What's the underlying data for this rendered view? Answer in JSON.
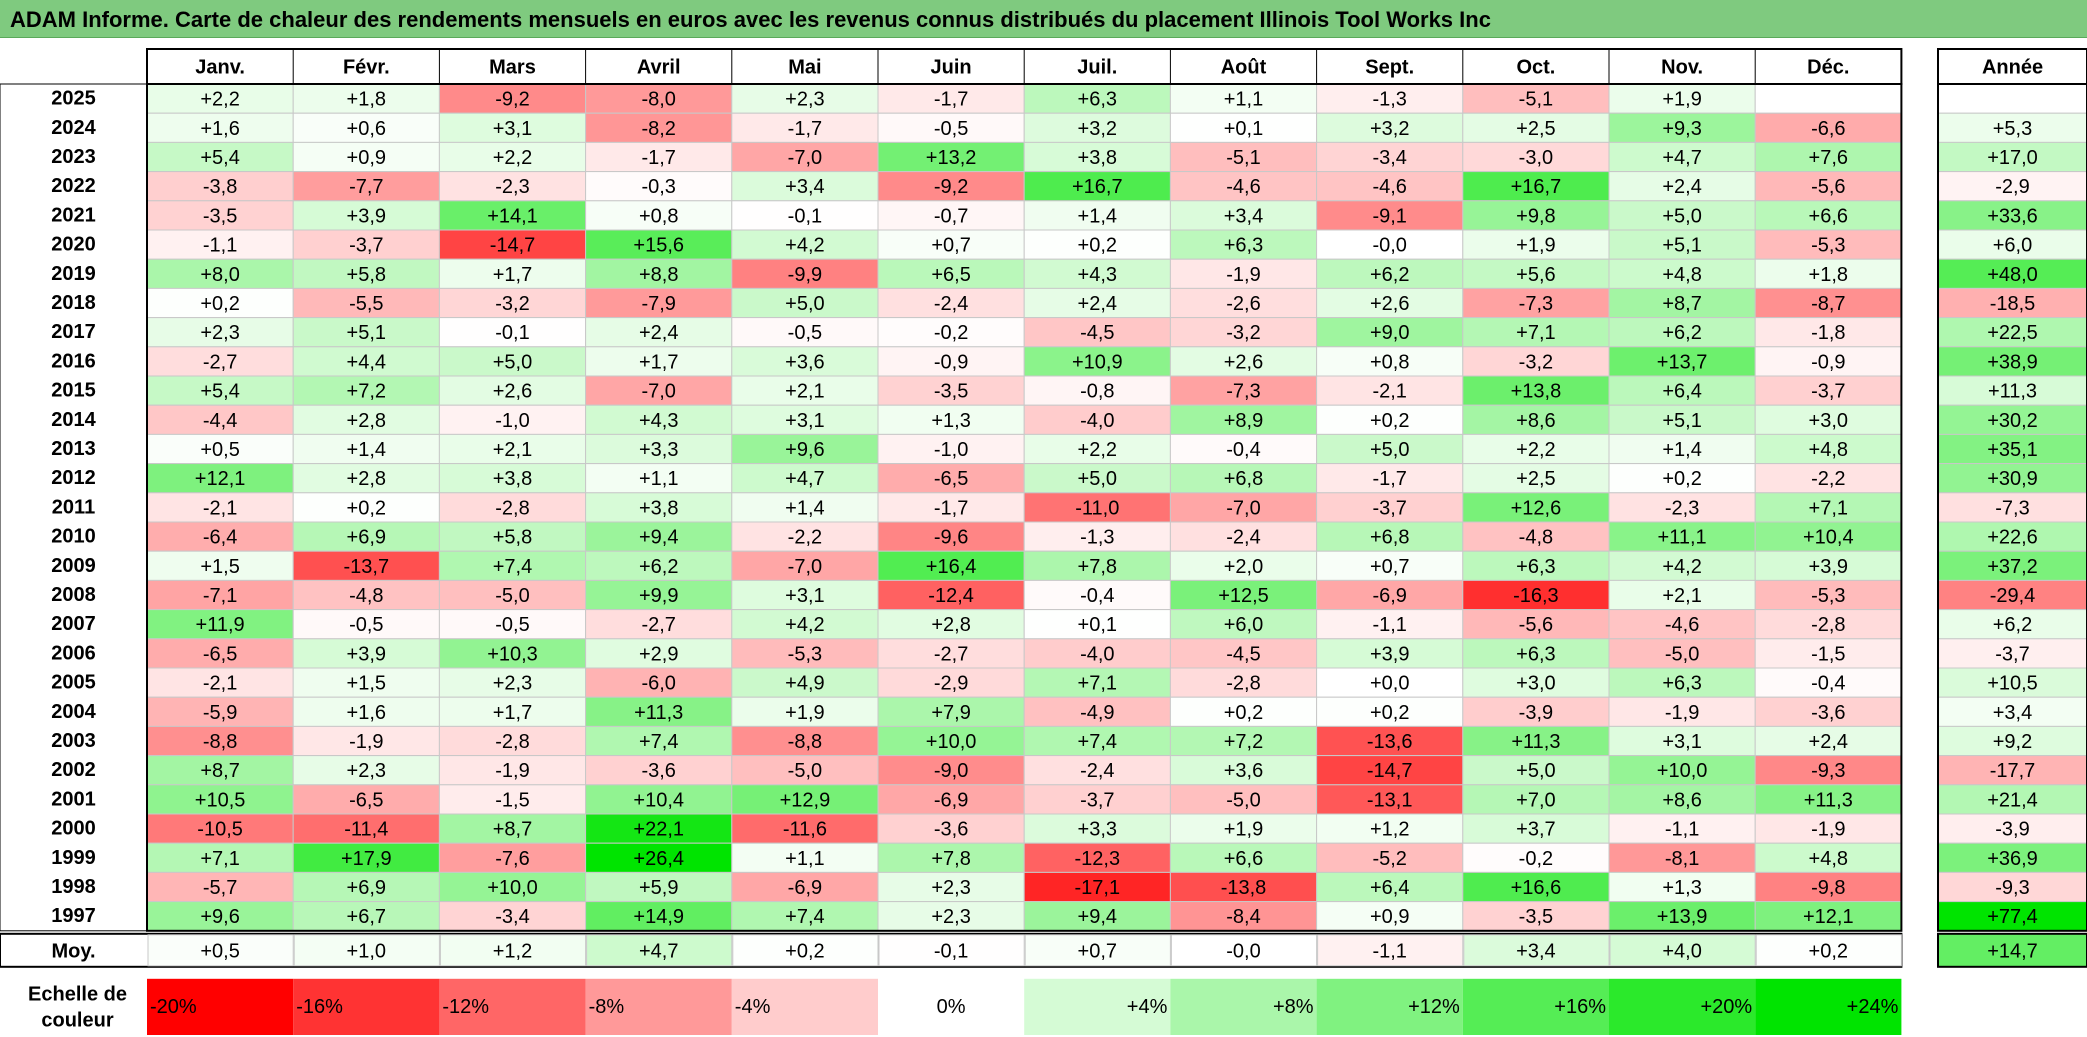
{
  "title": "ADAM Informe. Carte de chaleur des rendements mensuels en euros avec les revenus connus distribués du placement Illinois Tool Works Inc",
  "chart_data": {
    "type": "heatmap",
    "months": [
      "Janv.",
      "Févr.",
      "Mars",
      "Avril",
      "Mai",
      "Juin",
      "Juil.",
      "Août",
      "Sept.",
      "Oct.",
      "Nov.",
      "Déc."
    ],
    "year_header": "Année",
    "rows": [
      {
        "year": "2025",
        "values": [
          "+2,2",
          "+1,8",
          "-9,2",
          "-8,0",
          "+2,3",
          "-1,7",
          "+6,3",
          "+1,1",
          "-1,3",
          "-5,1",
          "+1,9",
          ""
        ],
        "annual": ""
      },
      {
        "year": "2024",
        "values": [
          "+1,6",
          "+0,6",
          "+3,1",
          "-8,2",
          "-1,7",
          "-0,5",
          "+3,2",
          "+0,1",
          "+3,2",
          "+2,5",
          "+9,3",
          "-6,6"
        ],
        "annual": "+5,3"
      },
      {
        "year": "2023",
        "values": [
          "+5,4",
          "+0,9",
          "+2,2",
          "-1,7",
          "-7,0",
          "+13,2",
          "+3,8",
          "-5,1",
          "-3,4",
          "-3,0",
          "+4,7",
          "+7,6"
        ],
        "annual": "+17,0"
      },
      {
        "year": "2022",
        "values": [
          "-3,8",
          "-7,7",
          "-2,3",
          "-0,3",
          "+3,4",
          "-9,2",
          "+16,7",
          "-4,6",
          "-4,6",
          "+16,7",
          "+2,4",
          "-5,6"
        ],
        "annual": "-2,9"
      },
      {
        "year": "2021",
        "values": [
          "-3,5",
          "+3,9",
          "+14,1",
          "+0,8",
          "-0,1",
          "-0,7",
          "+1,4",
          "+3,4",
          "-9,1",
          "+9,8",
          "+5,0",
          "+6,6"
        ],
        "annual": "+33,6"
      },
      {
        "year": "2020",
        "values": [
          "-1,1",
          "-3,7",
          "-14,7",
          "+15,6",
          "+4,2",
          "+0,7",
          "+0,2",
          "+6,3",
          "-0,0",
          "+1,9",
          "+5,1",
          "-5,3"
        ],
        "annual": "+6,0"
      },
      {
        "year": "2019",
        "values": [
          "+8,0",
          "+5,8",
          "+1,7",
          "+8,8",
          "-9,9",
          "+6,5",
          "+4,3",
          "-1,9",
          "+6,2",
          "+5,6",
          "+4,8",
          "+1,8"
        ],
        "annual": "+48,0"
      },
      {
        "year": "2018",
        "values": [
          "+0,2",
          "-5,5",
          "-3,2",
          "-7,9",
          "+5,0",
          "-2,4",
          "+2,4",
          "-2,6",
          "+2,6",
          "-7,3",
          "+8,7",
          "-8,7"
        ],
        "annual": "-18,5"
      },
      {
        "year": "2017",
        "values": [
          "+2,3",
          "+5,1",
          "-0,1",
          "+2,4",
          "-0,5",
          "-0,2",
          "-4,5",
          "-3,2",
          "+9,0",
          "+7,1",
          "+6,2",
          "-1,8"
        ],
        "annual": "+22,5"
      },
      {
        "year": "2016",
        "values": [
          "-2,7",
          "+4,4",
          "+5,0",
          "+1,7",
          "+3,6",
          "-0,9",
          "+10,9",
          "+2,6",
          "+0,8",
          "-3,2",
          "+13,7",
          "-0,9"
        ],
        "annual": "+38,9"
      },
      {
        "year": "2015",
        "values": [
          "+5,4",
          "+7,2",
          "+2,6",
          "-7,0",
          "+2,1",
          "-3,5",
          "-0,8",
          "-7,3",
          "-2,1",
          "+13,8",
          "+6,4",
          "-3,7"
        ],
        "annual": "+11,3"
      },
      {
        "year": "2014",
        "values": [
          "-4,4",
          "+2,8",
          "-1,0",
          "+4,3",
          "+3,1",
          "+1,3",
          "-4,0",
          "+8,9",
          "+0,2",
          "+8,6",
          "+5,1",
          "+3,0"
        ],
        "annual": "+30,2"
      },
      {
        "year": "2013",
        "values": [
          "+0,5",
          "+1,4",
          "+2,1",
          "+3,3",
          "+9,6",
          "-1,0",
          "+2,2",
          "-0,4",
          "+5,0",
          "+2,2",
          "+1,4",
          "+4,8"
        ],
        "annual": "+35,1"
      },
      {
        "year": "2012",
        "values": [
          "+12,1",
          "+2,8",
          "+3,8",
          "+1,1",
          "+4,7",
          "-6,5",
          "+5,0",
          "+6,8",
          "-1,7",
          "+2,5",
          "+0,2",
          "-2,2"
        ],
        "annual": "+30,9"
      },
      {
        "year": "2011",
        "values": [
          "-2,1",
          "+0,2",
          "-2,8",
          "+3,8",
          "+1,4",
          "-1,7",
          "-11,0",
          "-7,0",
          "-3,7",
          "+12,6",
          "-2,3",
          "+7,1"
        ],
        "annual": "-7,3"
      },
      {
        "year": "2010",
        "values": [
          "-6,4",
          "+6,9",
          "+5,8",
          "+9,4",
          "-2,2",
          "-9,6",
          "-1,3",
          "-2,4",
          "+6,8",
          "-4,8",
          "+11,1",
          "+10,4"
        ],
        "annual": "+22,6"
      },
      {
        "year": "2009",
        "values": [
          "+1,5",
          "-13,7",
          "+7,4",
          "+6,2",
          "-7,0",
          "+16,4",
          "+7,8",
          "+2,0",
          "+0,7",
          "+6,3",
          "+4,2",
          "+3,9"
        ],
        "annual": "+37,2"
      },
      {
        "year": "2008",
        "values": [
          "-7,1",
          "-4,8",
          "-5,0",
          "+9,9",
          "+3,1",
          "-12,4",
          "-0,4",
          "+12,5",
          "-6,9",
          "-16,3",
          "+2,1",
          "-5,3"
        ],
        "annual": "-29,4"
      },
      {
        "year": "2007",
        "values": [
          "+11,9",
          "-0,5",
          "-0,5",
          "-2,7",
          "+4,2",
          "+2,8",
          "+0,1",
          "+6,0",
          "-1,1",
          "-5,6",
          "-4,6",
          "-2,8"
        ],
        "annual": "+6,2"
      },
      {
        "year": "2006",
        "values": [
          "-6,5",
          "+3,9",
          "+10,3",
          "+2,9",
          "-5,3",
          "-2,7",
          "-4,0",
          "-4,5",
          "+3,9",
          "+6,3",
          "-5,0",
          "-1,5"
        ],
        "annual": "-3,7"
      },
      {
        "year": "2005",
        "values": [
          "-2,1",
          "+1,5",
          "+2,3",
          "-6,0",
          "+4,9",
          "-2,9",
          "+7,1",
          "-2,8",
          "+0,0",
          "+3,0",
          "+6,3",
          "-0,4"
        ],
        "annual": "+10,5"
      },
      {
        "year": "2004",
        "values": [
          "-5,9",
          "+1,6",
          "+1,7",
          "+11,3",
          "+1,9",
          "+7,9",
          "-4,9",
          "+0,2",
          "+0,2",
          "-3,9",
          "-1,9",
          "-3,6"
        ],
        "annual": "+3,4"
      },
      {
        "year": "2003",
        "values": [
          "-8,8",
          "-1,9",
          "-2,8",
          "+7,4",
          "-8,8",
          "+10,0",
          "+7,4",
          "+7,2",
          "-13,6",
          "+11,3",
          "+3,1",
          "+2,4"
        ],
        "annual": "+9,2"
      },
      {
        "year": "2002",
        "values": [
          "+8,7",
          "+2,3",
          "-1,9",
          "-3,6",
          "-5,0",
          "-9,0",
          "-2,4",
          "+3,6",
          "-14,7",
          "+5,0",
          "+10,0",
          "-9,3"
        ],
        "annual": "-17,7"
      },
      {
        "year": "2001",
        "values": [
          "+10,5",
          "-6,5",
          "-1,5",
          "+10,4",
          "+12,9",
          "-6,9",
          "-3,7",
          "-5,0",
          "-13,1",
          "+7,0",
          "+8,6",
          "+11,3"
        ],
        "annual": "+21,4"
      },
      {
        "year": "2000",
        "values": [
          "-10,5",
          "-11,4",
          "+8,7",
          "+22,1",
          "-11,6",
          "-3,6",
          "+3,3",
          "+1,9",
          "+1,2",
          "+3,7",
          "-1,1",
          "-1,9"
        ],
        "annual": "-3,9"
      },
      {
        "year": "1999",
        "values": [
          "+7,1",
          "+17,9",
          "-7,6",
          "+26,4",
          "+1,1",
          "+7,8",
          "-12,3",
          "+6,6",
          "-5,2",
          "-0,2",
          "-8,1",
          "+4,8"
        ],
        "annual": "+36,9"
      },
      {
        "year": "1998",
        "values": [
          "-5,7",
          "+6,9",
          "+10,0",
          "+5,9",
          "-6,9",
          "+2,3",
          "-17,1",
          "-13,8",
          "+6,4",
          "+16,6",
          "+1,3",
          "-9,8"
        ],
        "annual": "-9,3"
      },
      {
        "year": "1997",
        "values": [
          "+9,6",
          "+6,7",
          "-3,4",
          "+14,9",
          "+7,4",
          "+2,3",
          "+9,4",
          "-8,4",
          "+0,9",
          "-3,5",
          "+13,9",
          "+12,1"
        ],
        "annual": "+77,4"
      }
    ],
    "average": {
      "label": "Moy.",
      "values": [
        "+0,5",
        "+1,0",
        "+1,2",
        "+4,7",
        "+0,2",
        "-0,1",
        "+0,7",
        "-0,0",
        "-1,1",
        "+3,4",
        "+4,0",
        "+0,2"
      ],
      "annual": "+14,7"
    },
    "scale": {
      "label_line1": "Echelle de",
      "label_line2": "couleur",
      "labels": [
        "-20%",
        "-16%",
        "-12%",
        "-8%",
        "-4%",
        "0%",
        "+4%",
        "+8%",
        "+12%",
        "+16%",
        "+20%",
        "+24%"
      ],
      "values": [
        -20,
        -16,
        -12,
        -8,
        -4,
        0,
        4,
        8,
        12,
        16,
        20,
        24
      ]
    },
    "colors": {
      "negative_max": "#ff0000",
      "neutral": "#ffffff",
      "positive_max": "#00e400",
      "title_band": "#7fca7f"
    }
  }
}
